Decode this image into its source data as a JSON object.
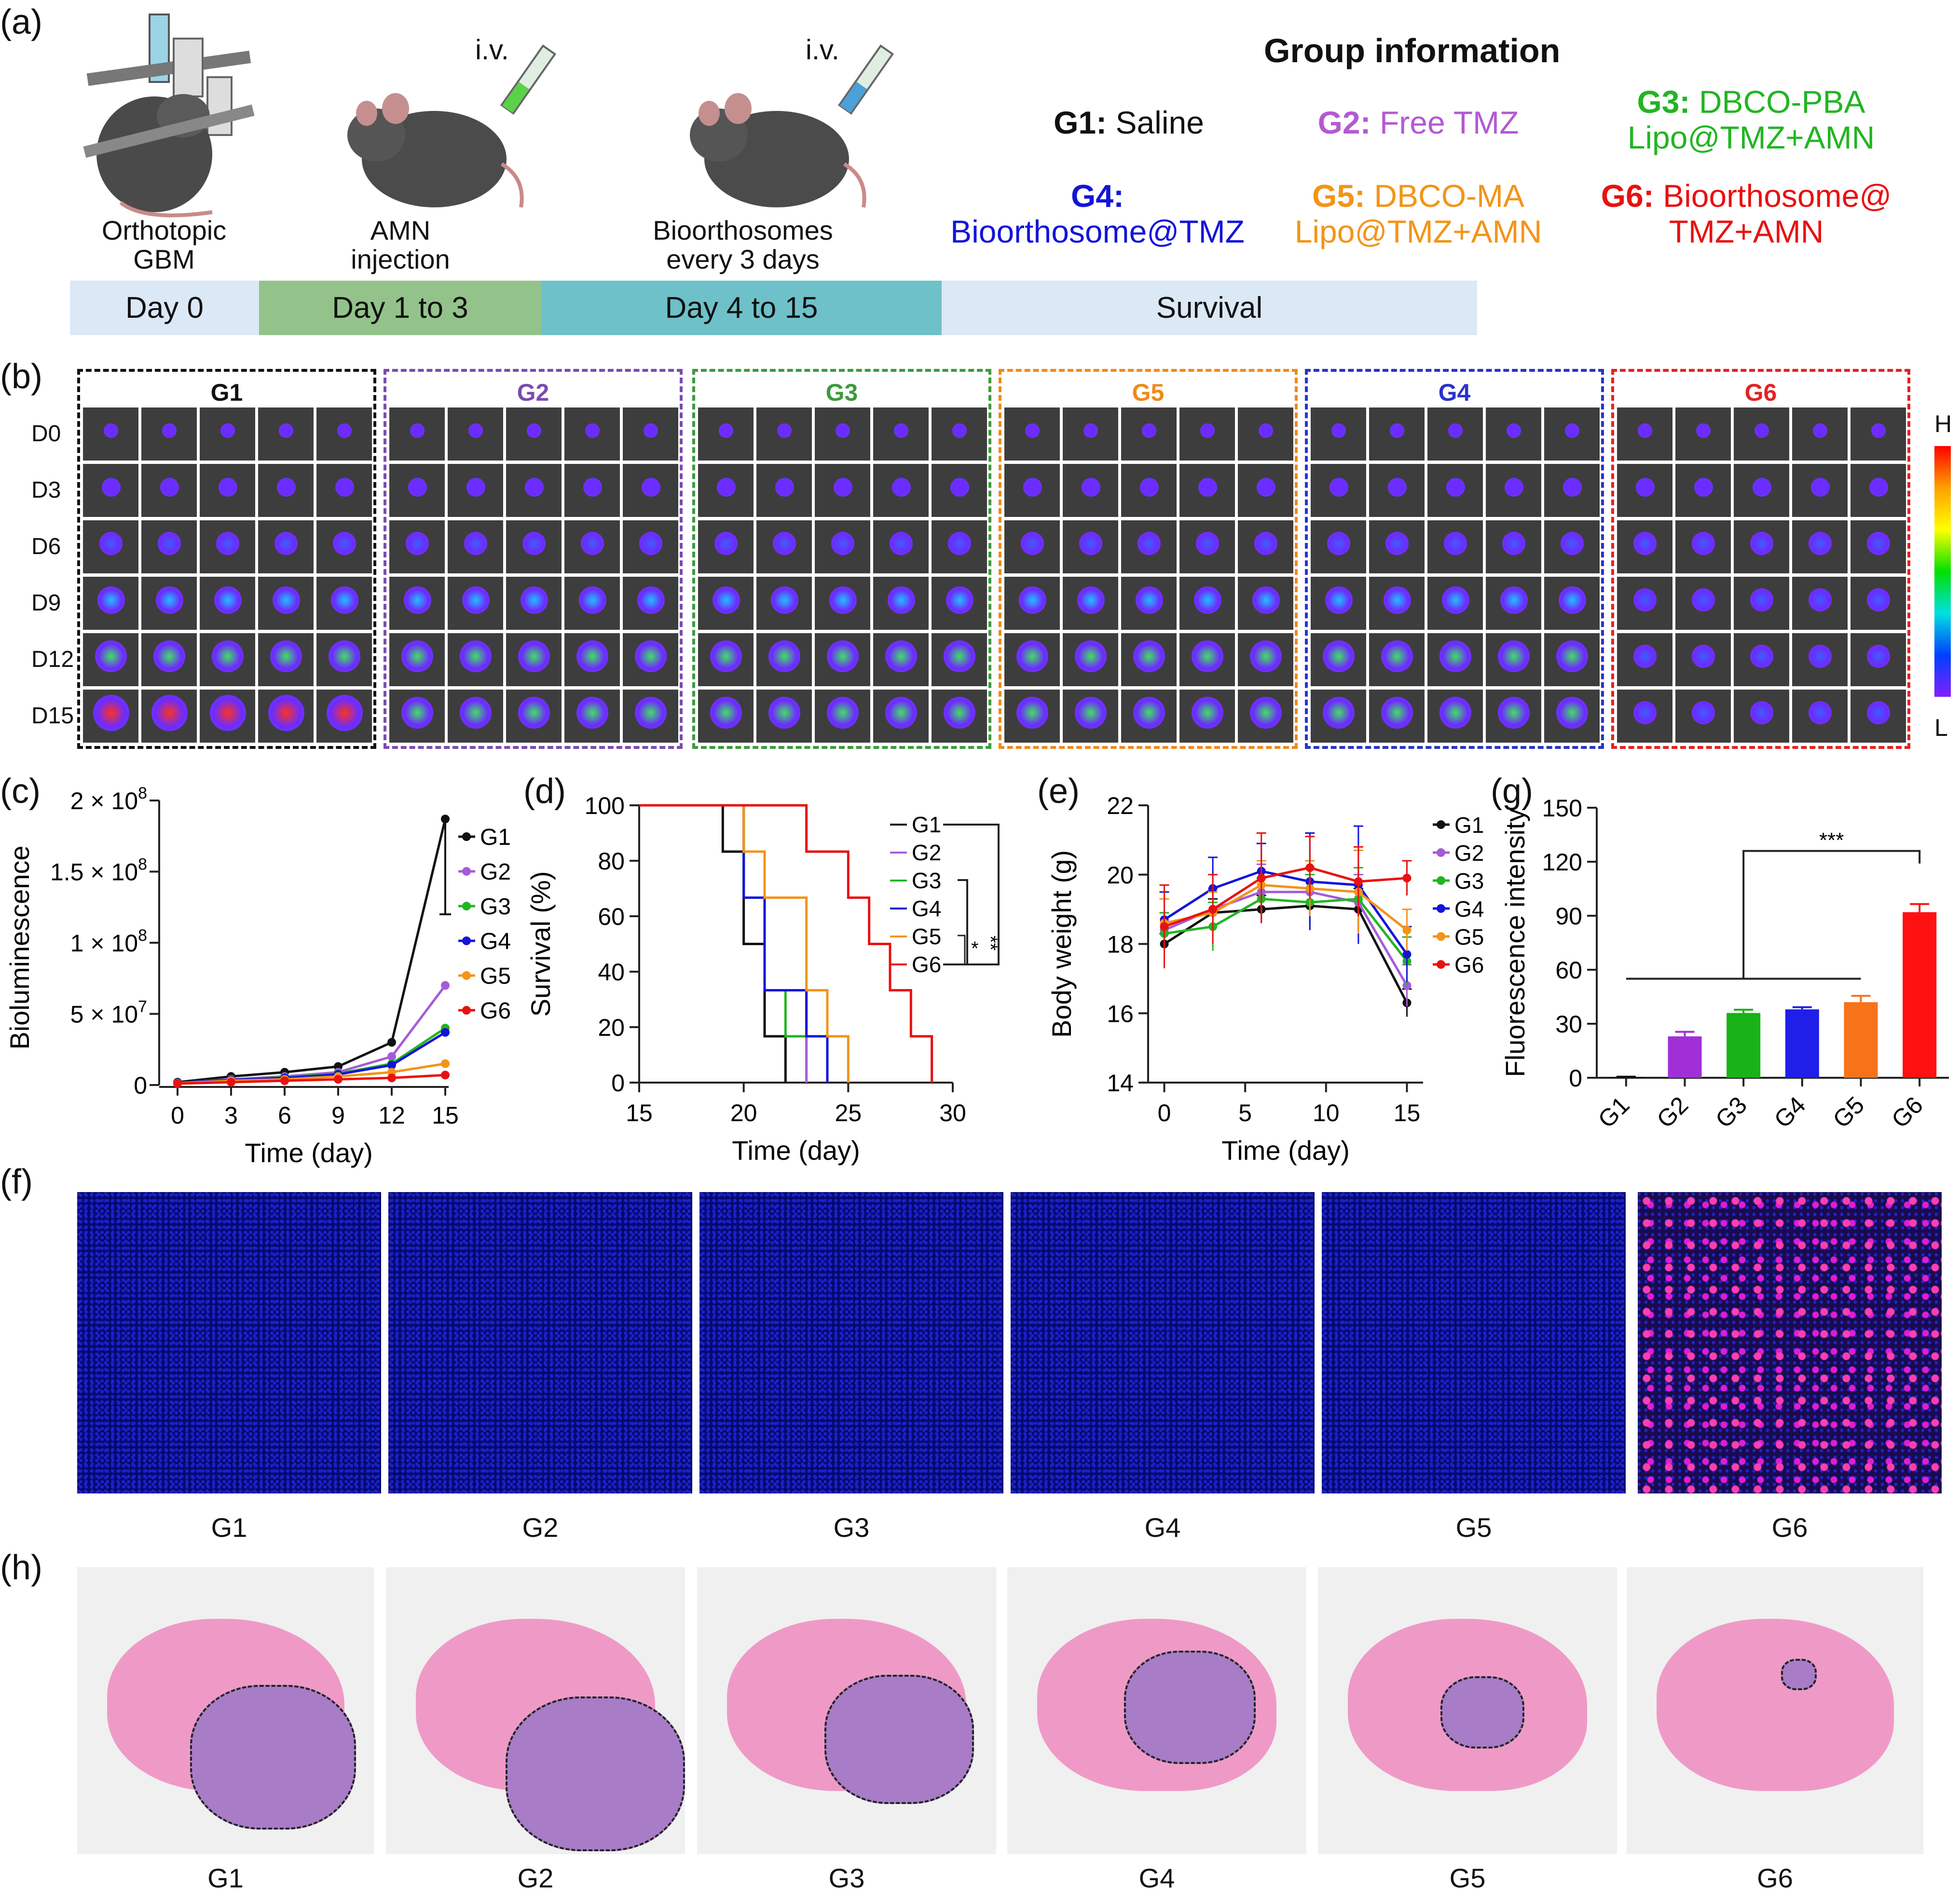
{
  "panel_a": {
    "letter": "(a)",
    "iv1": "i.v.",
    "iv2": "i.v.",
    "step1": [
      "Orthotopic",
      "GBM"
    ],
    "step2": [
      "AMN",
      "injection"
    ],
    "step3": [
      "Bioorthosomes",
      "every 3 days"
    ],
    "timeline": [
      {
        "label": "Day 0",
        "color": "#dbe8f6"
      },
      {
        "label": "Day 1 to 3",
        "color": "#93c38a"
      },
      {
        "label": "Day 4 to 15",
        "color": "#6ec1c9"
      },
      {
        "label": "Survival",
        "color": "#dbe8f6"
      }
    ],
    "group_info_title": "Group information",
    "groups": [
      {
        "id": "G1:",
        "desc": [
          "Saline"
        ],
        "color": "#111111"
      },
      {
        "id": "G2:",
        "desc": [
          "Free TMZ"
        ],
        "color": "#b25ad3"
      },
      {
        "id": "G3:",
        "desc": [
          "DBCO-PBA",
          "Lipo@TMZ+AMN"
        ],
        "color": "#22b522"
      },
      {
        "id": "G4:",
        "desc": [
          "Bioorthosome@TMZ"
        ],
        "color": "#1414d9"
      },
      {
        "id": "G5:",
        "desc": [
          "DBCO-MA",
          "Lipo@TMZ+AMN"
        ],
        "color": "#f39418"
      },
      {
        "id": "G6:",
        "desc": [
          "Bioorthosome@",
          "TMZ+AMN"
        ],
        "color": "#e81111"
      }
    ]
  },
  "panel_b": {
    "letter": "(b)",
    "group_titles": [
      {
        "label": "G1",
        "color": "#111111"
      },
      {
        "label": "G2",
        "color": "#7b4bb0"
      },
      {
        "label": "G3",
        "color": "#3c9b3c"
      },
      {
        "label": "G5",
        "color": "#f08a1a"
      },
      {
        "label": "G4",
        "color": "#2a33c9"
      },
      {
        "label": "G6",
        "color": "#e32222"
      }
    ],
    "days": [
      "D0",
      "D3",
      "D6",
      "D9",
      "D12",
      "D15"
    ],
    "scale_high": "H",
    "scale_low": "L"
  },
  "panel_c": {
    "letter": "(c)",
    "chart_data": {
      "type": "line",
      "x": [
        0,
        3,
        6,
        9,
        12,
        15
      ],
      "xlabel": "Time (day)",
      "ylabel": "Bioluminescence",
      "yticks": [
        "0",
        "5 × 10",
        "1 × 10",
        "1.5 × 10",
        "2 × 10"
      ],
      "ytick_exp": "8",
      "ytick_exp_small": "7",
      "ylim": [
        0,
        200000000
      ],
      "series": [
        {
          "name": "G1",
          "color": "#111111",
          "values": [
            2000000,
            6000000,
            9000000,
            13000000,
            30000000,
            187000000
          ],
          "err": [
            0,
            0,
            0,
            0,
            0,
            0
          ]
        },
        {
          "name": "G2",
          "color": "#a45cd6",
          "values": [
            1500000,
            4000000,
            6000000,
            9000000,
            20000000,
            70000000
          ],
          "err": [
            0,
            0,
            0,
            0,
            0,
            0
          ]
        },
        {
          "name": "G3",
          "color": "#22b522",
          "values": [
            1500000,
            3500000,
            5500000,
            8000000,
            15000000,
            40000000
          ],
          "err": [
            0,
            0,
            0,
            0,
            0,
            0
          ]
        },
        {
          "name": "G4",
          "color": "#1414d9",
          "values": [
            1500000,
            3500000,
            5000000,
            7500000,
            14000000,
            37000000
          ],
          "err": [
            0,
            0,
            0,
            0,
            0,
            0
          ]
        },
        {
          "name": "G5",
          "color": "#f39418",
          "values": [
            1200000,
            3000000,
            4000000,
            6000000,
            9000000,
            15000000
          ],
          "err": [
            0,
            0,
            0,
            0,
            0,
            0
          ]
        },
        {
          "name": "G6",
          "color": "#e81111",
          "values": [
            1000000,
            2000000,
            3000000,
            4000000,
            5000000,
            7000000
          ],
          "err": [
            0,
            0,
            0,
            0,
            0,
            0
          ]
        }
      ]
    }
  },
  "panel_d": {
    "letter": "(d)",
    "chart_data": {
      "type": "line",
      "xlabel": "Time (day)",
      "ylabel": "Survival (%)",
      "xlim": [
        15,
        30
      ],
      "ylim": [
        0,
        100
      ],
      "xticks": [
        15,
        20,
        25,
        30
      ],
      "yticks": [
        0,
        20,
        40,
        60,
        80,
        100
      ],
      "series": [
        {
          "name": "G1",
          "color": "#111111",
          "steps": [
            [
              15,
              100
            ],
            [
              19,
              100
            ],
            [
              19,
              83.3
            ],
            [
              20,
              83.3
            ],
            [
              20,
              50
            ],
            [
              21,
              50
            ],
            [
              21,
              16.7
            ],
            [
              22,
              16.7
            ],
            [
              22,
              0
            ]
          ]
        },
        {
          "name": "G2",
          "color": "#a45cd6",
          "steps": [
            [
              15,
              100
            ],
            [
              20,
              100
            ],
            [
              20,
              66.7
            ],
            [
              21,
              66.7
            ],
            [
              21,
              33.3
            ],
            [
              23,
              33.3
            ],
            [
              23,
              0
            ]
          ]
        },
        {
          "name": "G3",
          "color": "#22b522",
          "steps": [
            [
              15,
              100
            ],
            [
              20,
              100
            ],
            [
              20,
              66.7
            ],
            [
              21,
              66.7
            ],
            [
              21,
              33.3
            ],
            [
              22,
              33.3
            ],
            [
              22,
              16.7
            ],
            [
              24,
              16.7
            ],
            [
              24,
              0
            ]
          ]
        },
        {
          "name": "G4",
          "color": "#1414d9",
          "steps": [
            [
              15,
              100
            ],
            [
              20,
              100
            ],
            [
              20,
              66.7
            ],
            [
              21,
              66.7
            ],
            [
              21,
              33.3
            ],
            [
              23,
              33.3
            ],
            [
              23,
              16.7
            ],
            [
              24,
              16.7
            ],
            [
              24,
              0
            ]
          ]
        },
        {
          "name": "G5",
          "color": "#f39418",
          "steps": [
            [
              15,
              100
            ],
            [
              20,
              100
            ],
            [
              20,
              83.3
            ],
            [
              21,
              83.3
            ],
            [
              21,
              66.7
            ],
            [
              23,
              66.7
            ],
            [
              23,
              33.3
            ],
            [
              24,
              33.3
            ],
            [
              24,
              16.7
            ],
            [
              25,
              16.7
            ],
            [
              25,
              0
            ]
          ]
        },
        {
          "name": "G6",
          "color": "#e81111",
          "steps": [
            [
              15,
              100
            ],
            [
              23,
              100
            ],
            [
              23,
              83.3
            ],
            [
              25,
              83.3
            ],
            [
              25,
              66.7
            ],
            [
              26,
              66.7
            ],
            [
              26,
              50
            ],
            [
              27,
              50
            ],
            [
              27,
              33.3
            ],
            [
              28,
              33.3
            ],
            [
              28,
              16.7
            ],
            [
              29,
              16.7
            ],
            [
              29,
              0
            ]
          ]
        }
      ],
      "significance": [
        "*",
        "**",
        "***"
      ]
    }
  },
  "panel_e": {
    "letter": "(e)",
    "chart_data": {
      "type": "line",
      "xlabel": "Time (day)",
      "ylabel": "Body weight (g)",
      "xlim": [
        -1,
        16
      ],
      "ylim": [
        14,
        22
      ],
      "xticks": [
        0,
        5,
        10,
        15
      ],
      "yticks": [
        14,
        16,
        18,
        20,
        22
      ],
      "x": [
        0,
        3,
        6,
        9,
        12,
        15
      ],
      "series": [
        {
          "name": "G1",
          "color": "#111111",
          "values": [
            18.0,
            18.9,
            19.0,
            19.1,
            19.0,
            16.3
          ],
          "err": [
            0.3,
            0.4,
            0.4,
            0.5,
            0.6,
            0.4
          ]
        },
        {
          "name": "G2",
          "color": "#a45cd6",
          "values": [
            18.4,
            19.0,
            19.5,
            19.5,
            19.2,
            16.8
          ],
          "err": [
            0.5,
            0.6,
            0.8,
            0.7,
            0.8,
            0.6
          ]
        },
        {
          "name": "G3",
          "color": "#22b522",
          "values": [
            18.3,
            18.5,
            19.3,
            19.2,
            19.3,
            17.5
          ],
          "err": [
            0.6,
            0.7,
            0.6,
            0.8,
            0.9,
            0.7
          ]
        },
        {
          "name": "G4",
          "color": "#1414d9",
          "values": [
            18.7,
            19.6,
            20.1,
            19.8,
            19.7,
            17.7
          ],
          "err": [
            0.8,
            0.9,
            0.8,
            1.4,
            1.7,
            0.8
          ]
        },
        {
          "name": "G5",
          "color": "#f39418",
          "values": [
            18.6,
            18.9,
            19.7,
            19.6,
            19.5,
            18.4
          ],
          "err": [
            0.7,
            0.6,
            0.7,
            0.8,
            1.2,
            0.6
          ]
        },
        {
          "name": "G6",
          "color": "#e81111",
          "values": [
            18.5,
            19.0,
            19.9,
            20.2,
            19.8,
            19.9
          ],
          "err": [
            1.2,
            1.0,
            1.3,
            0.9,
            1.0,
            0.5
          ]
        }
      ]
    }
  },
  "panel_g": {
    "letter": "(g)",
    "chart_data": {
      "type": "bar",
      "categories": [
        "G1",
        "G2",
        "G3",
        "G4",
        "G5",
        "G6"
      ],
      "values": [
        0.4,
        23,
        36,
        38,
        42,
        92
      ],
      "err": [
        0.2,
        2.5,
        1.8,
        1.2,
        3.5,
        4.5
      ],
      "colors": [
        "#111111",
        "#a02fd8",
        "#19b219",
        "#1f1fe8",
        "#f7731a",
        "#ff1111"
      ],
      "ylabel": "Fluorescence intensity",
      "ylim": [
        0,
        150
      ],
      "yticks": [
        0,
        30,
        60,
        90,
        120,
        150
      ],
      "significance": "***"
    }
  },
  "panel_f": {
    "letter": "(f)",
    "labels": [
      "G1",
      "G2",
      "G3",
      "G4",
      "G5",
      "G6"
    ]
  },
  "panel_h": {
    "letter": "(h)",
    "labels": [
      "G1",
      "G2",
      "G3",
      "G4",
      "G5",
      "G6"
    ]
  }
}
